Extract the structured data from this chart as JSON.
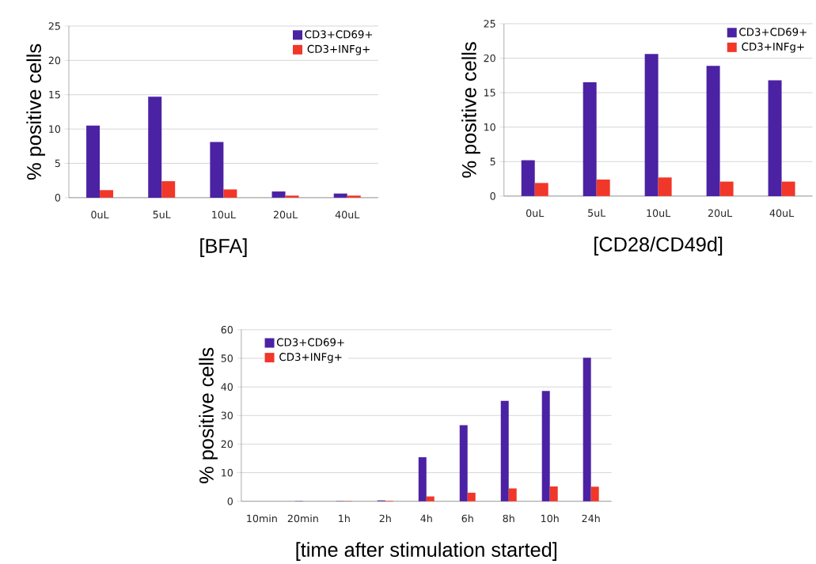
{
  "chart_data": [
    {
      "type": "bar",
      "categories": [
        "0uL",
        "5uL",
        "10uL",
        "20uL",
        "40uL"
      ],
      "series": [
        {
          "name": "CD3+CD69+",
          "color": "#4b22a3",
          "values": [
            10.5,
            14.7,
            8.1,
            0.9,
            0.6
          ]
        },
        {
          "name": "CD3+INFg+",
          "color": "#f0372a",
          "values": [
            1.1,
            2.4,
            1.2,
            0.3,
            0.3
          ]
        }
      ],
      "ylim": [
        0,
        25
      ],
      "yticks": [
        0,
        5,
        10,
        15,
        20,
        25
      ],
      "xlabel": "[BFA]",
      "ylabel": "% positive cells",
      "grid": "y",
      "legend": "top right"
    },
    {
      "type": "bar",
      "categories": [
        "0uL",
        "5uL",
        "10uL",
        "20uL",
        "40uL"
      ],
      "series": [
        {
          "name": "CD3+CD69+",
          "color": "#4b22a3",
          "values": [
            5.2,
            16.5,
            20.6,
            18.9,
            16.8
          ]
        },
        {
          "name": "CD3+INFg+",
          "color": "#f0372a",
          "values": [
            1.9,
            2.4,
            2.7,
            2.1,
            2.1
          ]
        }
      ],
      "ylim": [
        0,
        25
      ],
      "yticks": [
        0,
        5,
        10,
        15,
        20,
        25
      ],
      "xlabel": "[CD28/CD49d]",
      "ylabel": "% positive cells",
      "grid": "y",
      "legend": "top right"
    },
    {
      "type": "bar",
      "categories": [
        "10min",
        "20min",
        "1h",
        "2h",
        "4h",
        "6h",
        "8h",
        "10h",
        "24h"
      ],
      "series": [
        {
          "name": "CD3+CD69+",
          "color": "#4b22a3",
          "values": [
            0,
            0.1,
            0.1,
            0.3,
            15.4,
            26.6,
            35.1,
            38.6,
            50.2
          ]
        },
        {
          "name": "CD3+INFg+",
          "color": "#f0372a",
          "values": [
            0,
            0,
            0.1,
            0.2,
            1.7,
            3.0,
            4.5,
            5.2,
            5.1
          ]
        }
      ],
      "ylim": [
        0,
        60
      ],
      "yticks": [
        0,
        10,
        20,
        30,
        40,
        50,
        60
      ],
      "xlabel": "[time after stimulation started]",
      "ylabel": "% positive cells",
      "grid": "y",
      "legend": "top left"
    }
  ]
}
